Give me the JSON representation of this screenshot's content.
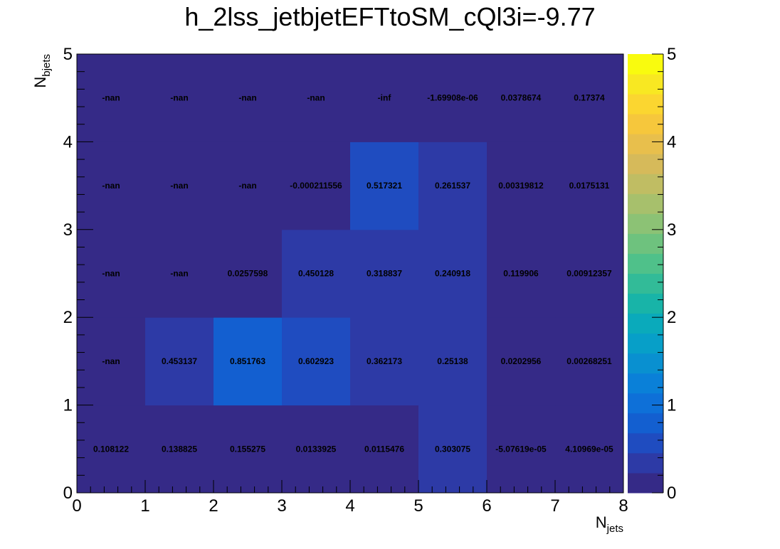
{
  "chart_data": {
    "type": "heatmap",
    "title": "h_2lss_jetbjetEFTtoSM_cQl3i=-9.77",
    "xlabel": {
      "main": "N",
      "sub": "jets"
    },
    "ylabel": {
      "main": "N",
      "sub": "bjets"
    },
    "x_edges": [
      0,
      1,
      2,
      3,
      4,
      5,
      6,
      7,
      8
    ],
    "y_edges": [
      0,
      1,
      2,
      3,
      4,
      5
    ],
    "x_ticks": [
      "0",
      "1",
      "2",
      "3",
      "4",
      "5",
      "6",
      "7",
      "8"
    ],
    "y_ticks": [
      "0",
      "1",
      "2",
      "3",
      "4",
      "5"
    ],
    "z_range": [
      0,
      5
    ],
    "z_ticks": [
      "0",
      "1",
      "2",
      "3",
      "4",
      "5"
    ],
    "palette": [
      "#352a87",
      "#2d3aa6",
      "#1f4cc0",
      "#135fd0",
      "#0e70d8",
      "#0a80d8",
      "#0990d0",
      "#079fc8",
      "#0aaabb",
      "#18b4a8",
      "#32bb98",
      "#4fc18a",
      "#6ec27e",
      "#8cc275",
      "#a7c06c",
      "#c0bd63",
      "#d6ba5a",
      "#e8bf4c",
      "#f6c73c",
      "#fbd630",
      "#f8e822",
      "#f9fb0e"
    ],
    "cells": [
      [
        "0.108122",
        "0.138825",
        "0.155275",
        "0.0133925",
        "0.0115476",
        "0.303075",
        "-5.07619e-05",
        "4.10969e-05"
      ],
      [
        "-nan",
        "0.453137",
        "0.851763",
        "0.602923",
        "0.362173",
        "0.25138",
        "0.0202956",
        "0.00268251"
      ],
      [
        "-nan",
        "-nan",
        "0.0257598",
        "0.450128",
        "0.318837",
        "0.240918",
        "0.119906",
        "0.00912357"
      ],
      [
        "-nan",
        "-nan",
        "-nan",
        "-0.000211556",
        "0.517321",
        "0.261537",
        "0.00319812",
        "0.0175131"
      ],
      [
        "-nan",
        "-nan",
        "-nan",
        "-nan",
        "-inf",
        "-1.69908e-06",
        "0.0378674",
        "0.17374"
      ]
    ]
  }
}
